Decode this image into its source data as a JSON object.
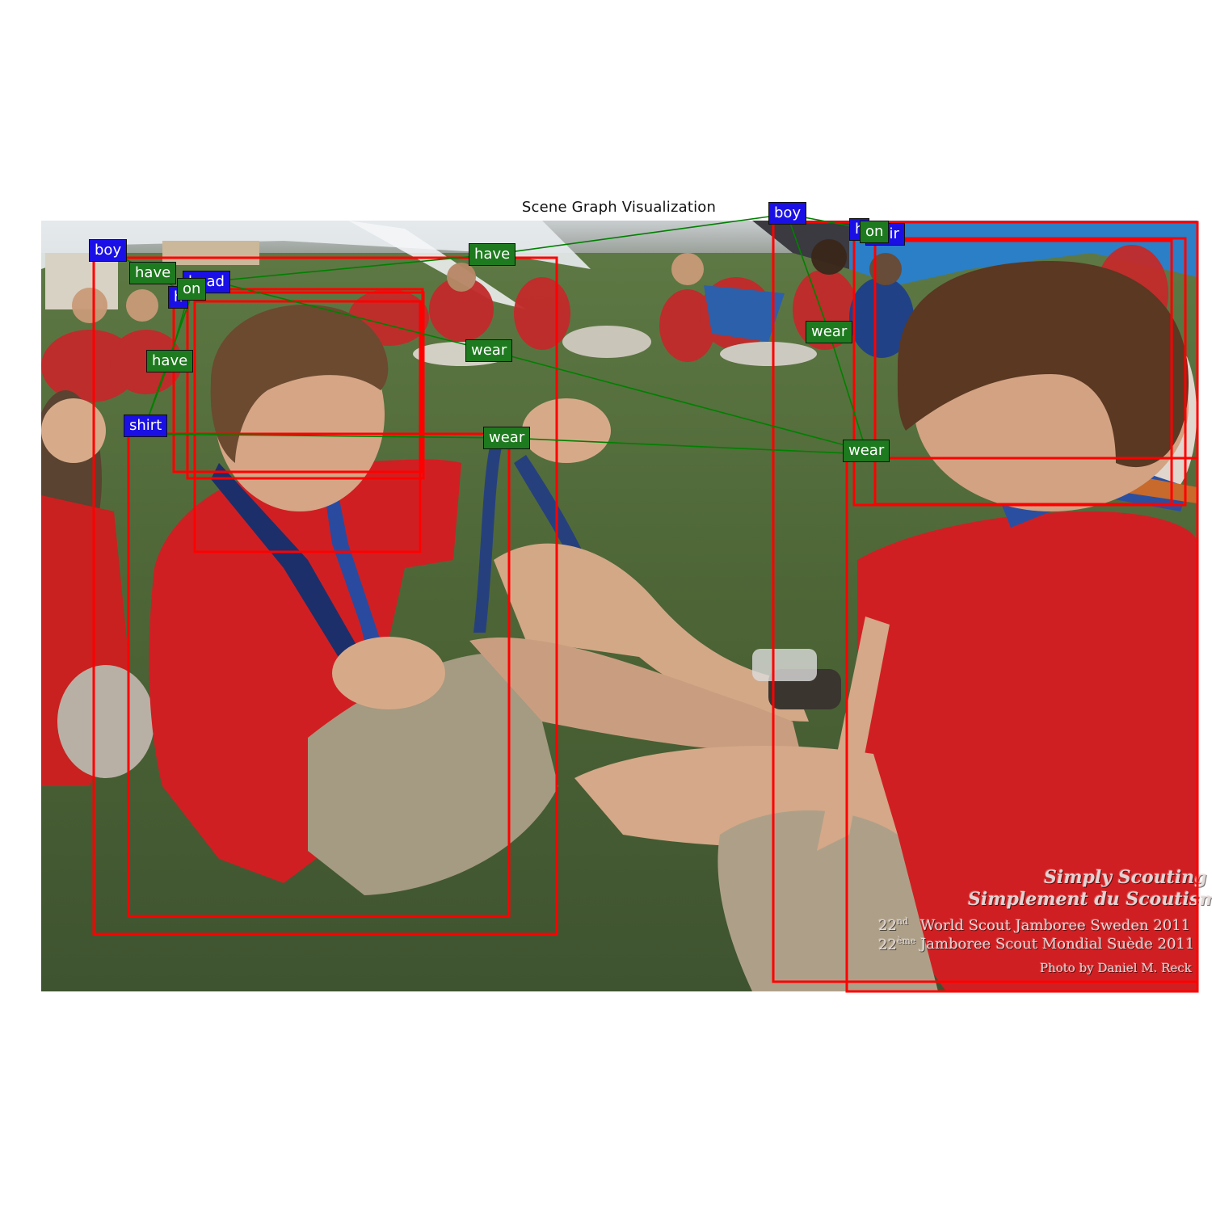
{
  "title": "Scene Graph Visualization",
  "labels": {
    "boy_left": "boy",
    "boy_right": "boy",
    "shirt": "shirt",
    "head": "head",
    "hair": "hair",
    "occluded_left": "h",
    "occluded_right": "h",
    "have_1": "have",
    "have_2": "have",
    "have_3": "have",
    "on_left": "on",
    "on_right": "on",
    "wear_1": "wear",
    "wear_2": "wear",
    "wear_3": "wear",
    "wear_4": "wear"
  },
  "watermark": {
    "line1": "Simply Scouting",
    "line2": "Simplement du Scoutisme",
    "num1": "22",
    "sup1": "nd",
    "num2": "22",
    "sup2": "ème",
    "event1": "World Scout Jamboree Sweden 2011",
    "event2": "Jamboree Scout Mondial Suède 2011",
    "credit": "Photo by Daniel M. Reck"
  },
  "colors": {
    "object_label": "#1a10e6",
    "relation_label": "#1e7a1e",
    "bounding_box": "#ff0000",
    "edge": "#008000"
  }
}
